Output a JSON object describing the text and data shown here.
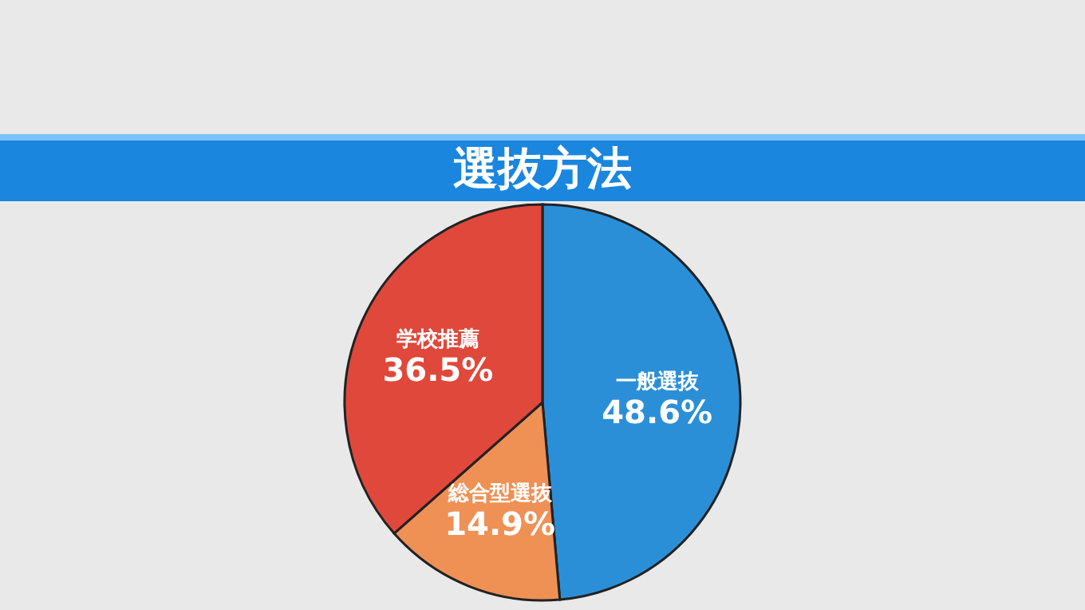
{
  "chart_data": {
    "type": "pie",
    "title": "選抜方法",
    "categories": [
      "一般選抜",
      "総合型選抜",
      "学校推薦"
    ],
    "values": [
      48.6,
      14.9,
      36.5
    ],
    "colors": [
      "#2b8fd8",
      "#ef9055",
      "#e0483b"
    ],
    "value_labels": [
      "48.6%",
      "14.9%",
      "36.5%"
    ]
  }
}
